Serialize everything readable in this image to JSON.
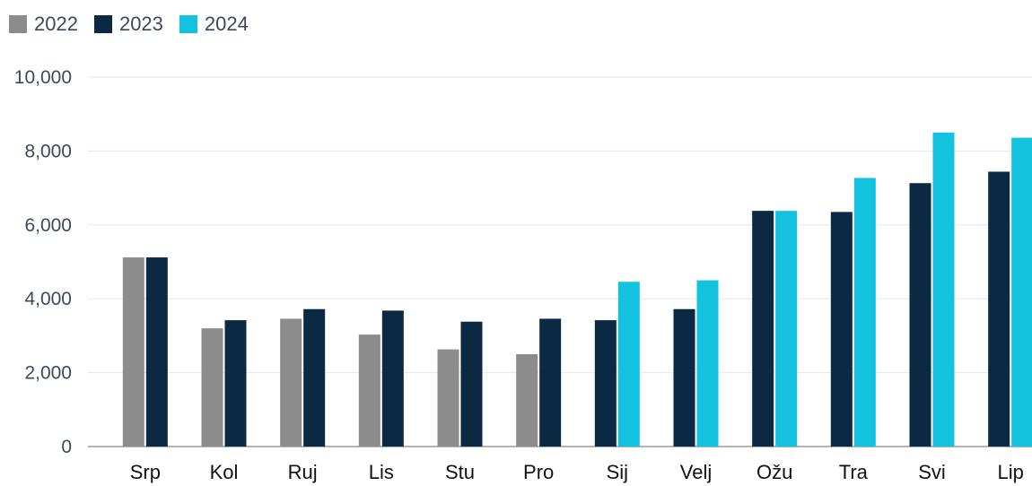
{
  "chart_data": {
    "type": "bar",
    "categories": [
      "Srp",
      "Kol",
      "Ruj",
      "Lis",
      "Stu",
      "Pro",
      "Sij",
      "Velj",
      "Ožu",
      "Tra",
      "Svi",
      "Lip"
    ],
    "series": [
      {
        "name": "2022",
        "color": "#8c8c8c",
        "values": [
          5120,
          3200,
          3460,
          3030,
          2630,
          2500,
          null,
          null,
          null,
          null,
          null,
          null
        ]
      },
      {
        "name": "2023",
        "color": "#0b2942",
        "values": [
          5120,
          3420,
          3720,
          3680,
          3380,
          3460,
          3420,
          3720,
          6380,
          6350,
          7130,
          7440
        ]
      },
      {
        "name": "2024",
        "color": "#12c2de",
        "values": [
          null,
          null,
          null,
          null,
          null,
          null,
          4460,
          4500,
          6380,
          7270,
          8500,
          8360
        ]
      }
    ],
    "y_ticks": [
      "0",
      "2,000",
      "4,000",
      "6,000",
      "8,000",
      "10,000"
    ],
    "ylim": [
      0,
      10000
    ],
    "grid": true,
    "legend_position": "top-left",
    "title": "",
    "xlabel": "",
    "ylabel": ""
  }
}
